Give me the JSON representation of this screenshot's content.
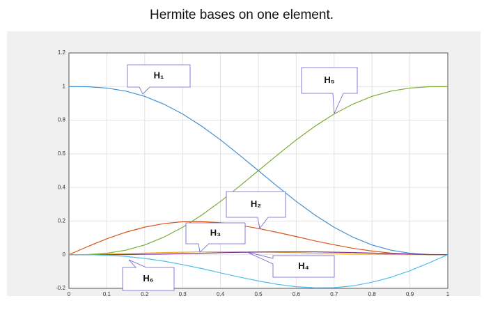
{
  "chart_data": {
    "type": "line",
    "title": "Hermite bases on one element.",
    "x": [
      0,
      0.05,
      0.1,
      0.15,
      0.2,
      0.25,
      0.3,
      0.35,
      0.4,
      0.45,
      0.5,
      0.55,
      0.6,
      0.65,
      0.7,
      0.75,
      0.8,
      0.85,
      0.9,
      0.95,
      1
    ],
    "series": [
      {
        "name": "H₁",
        "color": "#3f8fd0",
        "values": [
          1,
          0.999,
          0.991,
          0.973,
          0.942,
          0.896,
          0.837,
          0.765,
          0.683,
          0.593,
          0.5,
          0.407,
          0.317,
          0.235,
          0.163,
          0.104,
          0.058,
          0.027,
          0.009,
          0.001,
          0
        ]
      },
      {
        "name": "H₂",
        "color": "#d95319",
        "values": [
          0,
          0.049,
          0.095,
          0.134,
          0.164,
          0.185,
          0.196,
          0.197,
          0.19,
          0.176,
          0.156,
          0.133,
          0.108,
          0.082,
          0.059,
          0.038,
          0.022,
          0.01,
          0.003,
          0,
          0
        ]
      },
      {
        "name": "H₃",
        "color": "#edb120",
        "values": [
          0,
          0.001,
          0.004,
          0.007,
          0.01,
          0.013,
          0.015,
          0.017,
          0.017,
          0.017,
          0.016,
          0.014,
          0.012,
          0.009,
          0.007,
          0.004,
          0.003,
          0.001,
          0,
          0,
          0
        ]
      },
      {
        "name": "H₄",
        "color": "#7e2f8e",
        "values": [
          0,
          0,
          0,
          0.001,
          0.003,
          0.004,
          0.007,
          0.009,
          0.012,
          0.014,
          0.016,
          0.017,
          0.017,
          0.017,
          0.015,
          0.013,
          0.01,
          0.007,
          0.004,
          0.001,
          0
        ]
      },
      {
        "name": "H₅",
        "color": "#77ac30",
        "values": [
          0,
          0.001,
          0.009,
          0.027,
          0.058,
          0.104,
          0.163,
          0.235,
          0.317,
          0.407,
          0.5,
          0.593,
          0.683,
          0.765,
          0.837,
          0.896,
          0.942,
          0.973,
          0.991,
          0.999,
          1
        ]
      },
      {
        "name": "H₆",
        "color": "#4dbeee",
        "values": [
          0,
          0,
          -0.003,
          -0.01,
          -0.022,
          -0.038,
          -0.059,
          -0.082,
          -0.108,
          -0.133,
          -0.156,
          -0.176,
          -0.19,
          -0.197,
          -0.196,
          -0.185,
          -0.164,
          -0.134,
          -0.095,
          -0.049,
          0
        ]
      }
    ],
    "xlim": [
      0,
      1
    ],
    "xticks": [
      0,
      0.1,
      0.2,
      0.3,
      0.4,
      0.5,
      0.6,
      0.7,
      0.8,
      0.9,
      1
    ],
    "ylim": [
      -0.2,
      1.2
    ],
    "yticks": [
      -0.2,
      0,
      0.2,
      0.4,
      0.6,
      0.8,
      1,
      1.2
    ],
    "grid": true
  }
}
